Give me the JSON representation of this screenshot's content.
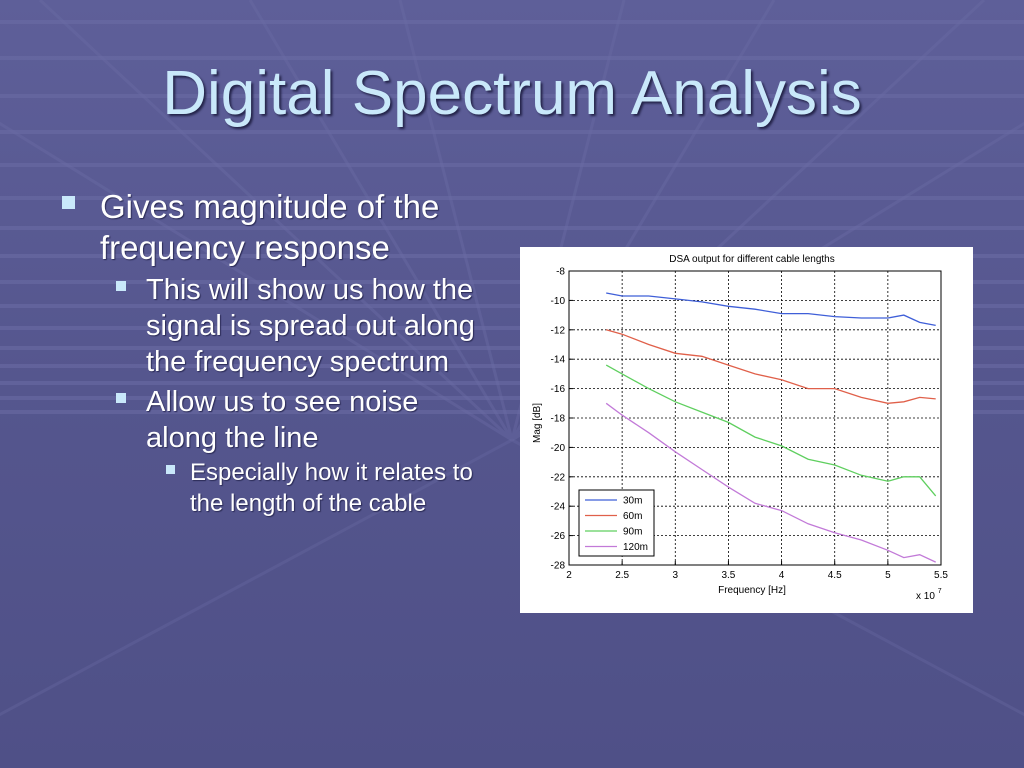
{
  "slide": {
    "title": "Digital Spectrum Analysis",
    "bullets": [
      {
        "level": 1,
        "text": "Gives magnitude of the frequency response"
      },
      {
        "level": 2,
        "text": "This will show us how the signal is spread out along the frequency spectrum"
      },
      {
        "level": 2,
        "text": "Allow us to see noise along the line"
      },
      {
        "level": 3,
        "text": "Especially how it relates to the length of the cable"
      }
    ]
  },
  "chart_data": {
    "type": "line",
    "title": "DSA output for different cable lengths",
    "xlabel": "Frequency [Hz]",
    "ylabel": "Mag [dB]",
    "x_multiplier": "x 10",
    "x_multiplier_exp": "7",
    "xlim": [
      2,
      5.5
    ],
    "ylim": [
      -28,
      -8
    ],
    "xticks": [
      "2",
      "2.5",
      "3",
      "3.5",
      "4",
      "4.5",
      "5",
      "5.5"
    ],
    "yticks": [
      "-28",
      "-26",
      "-24",
      "-22",
      "-20",
      "-18",
      "-16",
      "-14",
      "-12",
      "-10",
      "-8"
    ],
    "grid": true,
    "legend_position": "bottom-left",
    "series": [
      {
        "name": "30m",
        "color": "#3f5fd8",
        "x": [
          2.35,
          2.5,
          2.75,
          3.0,
          3.25,
          3.5,
          3.75,
          4.0,
          4.25,
          4.5,
          4.75,
          5.0,
          5.15,
          5.3,
          5.45
        ],
        "y": [
          -9.5,
          -9.7,
          -9.7,
          -9.9,
          -10.1,
          -10.4,
          -10.6,
          -10.9,
          -10.9,
          -11.1,
          -11.2,
          -11.2,
          -11.0,
          -11.5,
          -11.7
        ]
      },
      {
        "name": "60m",
        "color": "#e0604a",
        "x": [
          2.35,
          2.5,
          2.75,
          3.0,
          3.25,
          3.5,
          3.75,
          4.0,
          4.25,
          4.5,
          4.75,
          5.0,
          5.15,
          5.3,
          5.45
        ],
        "y": [
          -12.0,
          -12.3,
          -13.0,
          -13.6,
          -13.8,
          -14.4,
          -15.0,
          -15.4,
          -16.0,
          -16.0,
          -16.6,
          -17.0,
          -16.9,
          -16.6,
          -16.7
        ]
      },
      {
        "name": "90m",
        "color": "#5fcf5f",
        "x": [
          2.35,
          2.5,
          2.75,
          3.0,
          3.25,
          3.5,
          3.75,
          4.0,
          4.25,
          4.5,
          4.75,
          5.0,
          5.15,
          5.3,
          5.45
        ],
        "y": [
          -14.4,
          -15.0,
          -16.0,
          -16.9,
          -17.6,
          -18.3,
          -19.3,
          -19.9,
          -20.8,
          -21.2,
          -21.9,
          -22.3,
          -22.0,
          -22.0,
          -23.3
        ]
      },
      {
        "name": "120m",
        "color": "#c27ad8",
        "x": [
          2.35,
          2.5,
          2.75,
          3.0,
          3.25,
          3.5,
          3.75,
          4.0,
          4.25,
          4.5,
          4.75,
          5.0,
          5.15,
          5.3,
          5.45
        ],
        "y": [
          -17.0,
          -17.8,
          -19.0,
          -20.3,
          -21.5,
          -22.7,
          -23.8,
          -24.3,
          -25.2,
          -25.8,
          -26.3,
          -27.0,
          -27.5,
          -27.3,
          -27.8
        ]
      }
    ]
  },
  "theme": {
    "background": "#56578f",
    "title_color": "#c9e8fa",
    "text_color": "#ffffff",
    "bullet_color": "#c9e8fa"
  }
}
